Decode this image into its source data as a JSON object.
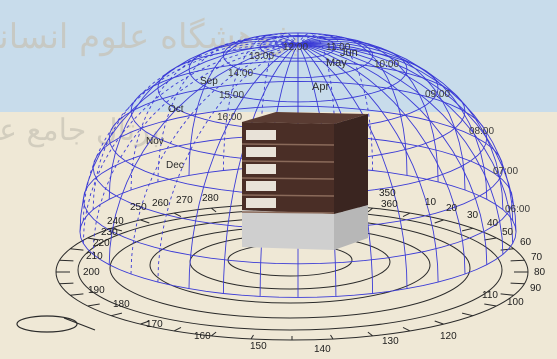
{
  "scene": {
    "colors": {
      "sky": "#c8dceb",
      "ground": "#efe8d6",
      "dome_lines": "#3b3bd6",
      "compass_lines": "#2a2a2a",
      "building_dark": "#4a2e26",
      "building_base": "#cfcfcf"
    },
    "watermark": {
      "line1": "پژوهشگاه علوم انسانی",
      "line2": "پرتال جامع علوم"
    },
    "month_labels": [
      "Jun",
      "May",
      "Apr",
      "Sep",
      "Oct",
      "Nov",
      "Dec"
    ],
    "hour_labels": [
      "12:00",
      "11:00",
      "10:00",
      "09:00",
      "08:00",
      "07:00",
      "06:00",
      "13:00",
      "14:00",
      "15:00",
      "16:00"
    ],
    "azimuth_labels": [
      "350",
      "360",
      "10",
      "20",
      "30",
      "40",
      "50",
      "60",
      "70",
      "80",
      "90",
      "100",
      "110",
      "120",
      "130",
      "140",
      "150",
      "160",
      "170",
      "180",
      "190",
      "200",
      "210",
      "220",
      "230",
      "240",
      "250",
      "260",
      "270",
      "280"
    ]
  }
}
